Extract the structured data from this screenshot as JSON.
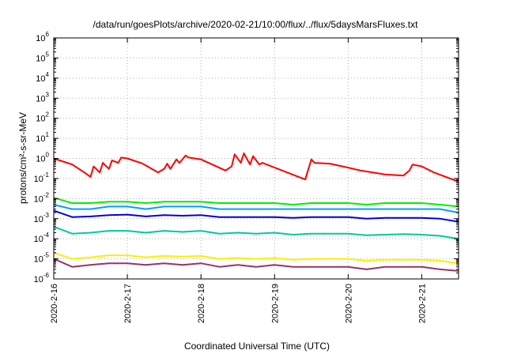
{
  "chart_data": {
    "type": "line",
    "title": "/data/run/goesPlots/archive/2020-02-21/10:00/flux/../flux/5daysMarsFluxes.txt",
    "xlabel": "Coordinated Universal Time (UTC)",
    "ylabel": "protons/cm²-s-sr-MeV",
    "yscale": "log",
    "xlim": [
      "2020-02-16T00:00",
      "2020-02-21T12:00"
    ],
    "ylim": [
      1e-06,
      1000000.0
    ],
    "grid": true,
    "x_ticks": [
      "2020-2-16",
      "2020-2-17",
      "2020-2-18",
      "2020-2-19",
      "2020-2-20",
      "2020-2-21"
    ],
    "y_tick_exponents": [
      -6,
      -5,
      -4,
      -3,
      -2,
      -1,
      0,
      1,
      2,
      3,
      4,
      5,
      6
    ],
    "series": [
      {
        "color": "#ff0000",
        "x": [
          "2020-02-16T00:00",
          "2020-02-16T06:00",
          "2020-02-16T10:00",
          "2020-02-16T12:00",
          "2020-02-16T13:00",
          "2020-02-16T15:00",
          "2020-02-16T16:00",
          "2020-02-16T18:00",
          "2020-02-16T19:00",
          "2020-02-16T21:00",
          "2020-02-16T22:00",
          "2020-02-17T00:00",
          "2020-02-17T05:00",
          "2020-02-17T10:00",
          "2020-02-17T12:00",
          "2020-02-17T13:00",
          "2020-02-17T14:00",
          "2020-02-17T16:00",
          "2020-02-17T17:00",
          "2020-02-17T19:00",
          "2020-02-17T20:00",
          "2020-02-18T00:00",
          "2020-02-18T08:00",
          "2020-02-18T10:00",
          "2020-02-18T11:00",
          "2020-02-18T13:00",
          "2020-02-18T14:00",
          "2020-02-18T16:00",
          "2020-02-18T17:00",
          "2020-02-18T19:00",
          "2020-02-18T20:00",
          "2020-02-19T00:00",
          "2020-02-19T10:00",
          "2020-02-19T12:00",
          "2020-02-19T13:00",
          "2020-02-19T18:00",
          "2020-02-20T00:00",
          "2020-02-20T04:00",
          "2020-02-20T12:00",
          "2020-02-20T18:00",
          "2020-02-20T20:00",
          "2020-02-20T21:00",
          "2020-02-21T00:00",
          "2020-02-21T04:00",
          "2020-02-21T12:00"
        ],
        "y": [
          1.0,
          0.5,
          0.2,
          0.12,
          0.4,
          0.2,
          0.6,
          0.3,
          0.8,
          0.6,
          1.1,
          1.0,
          0.55,
          0.2,
          0.3,
          0.55,
          0.3,
          0.9,
          0.6,
          1.4,
          1.1,
          0.9,
          0.25,
          0.4,
          1.6,
          0.6,
          1.8,
          0.5,
          1.3,
          0.5,
          0.6,
          0.35,
          0.09,
          0.9,
          0.6,
          0.55,
          0.35,
          0.25,
          0.16,
          0.14,
          0.25,
          0.5,
          0.4,
          0.2,
          0.07
        ]
      },
      {
        "color": "#00ee00",
        "x": [
          "2020-02-16T00:00",
          "2020-02-16T06:00",
          "2020-02-16T12:00",
          "2020-02-16T18:00",
          "2020-02-17T00:00",
          "2020-02-17T06:00",
          "2020-02-17T12:00",
          "2020-02-17T18:00",
          "2020-02-18T00:00",
          "2020-02-18T06:00",
          "2020-02-18T12:00",
          "2020-02-18T18:00",
          "2020-02-19T00:00",
          "2020-02-19T06:00",
          "2020-02-19T12:00",
          "2020-02-19T18:00",
          "2020-02-20T00:00",
          "2020-02-20T06:00",
          "2020-02-20T12:00",
          "2020-02-20T18:00",
          "2020-02-21T00:00",
          "2020-02-21T06:00",
          "2020-02-21T12:00"
        ],
        "y": [
          0.011,
          0.006,
          0.006,
          0.007,
          0.007,
          0.006,
          0.007,
          0.007,
          0.007,
          0.006,
          0.006,
          0.006,
          0.006,
          0.005,
          0.006,
          0.006,
          0.006,
          0.005,
          0.006,
          0.006,
          0.006,
          0.005,
          0.004
        ]
      },
      {
        "color": "#00a0ff",
        "x": [
          "2020-02-16T00:00",
          "2020-02-16T06:00",
          "2020-02-16T12:00",
          "2020-02-16T18:00",
          "2020-02-17T00:00",
          "2020-02-17T06:00",
          "2020-02-17T12:00",
          "2020-02-17T18:00",
          "2020-02-18T00:00",
          "2020-02-18T06:00",
          "2020-02-18T12:00",
          "2020-02-18T18:00",
          "2020-02-19T00:00",
          "2020-02-19T06:00",
          "2020-02-19T12:00",
          "2020-02-19T18:00",
          "2020-02-20T00:00",
          "2020-02-20T06:00",
          "2020-02-20T12:00",
          "2020-02-20T18:00",
          "2020-02-21T00:00",
          "2020-02-21T06:00",
          "2020-02-21T12:00"
        ],
        "y": [
          0.005,
          0.003,
          0.003,
          0.004,
          0.004,
          0.003,
          0.004,
          0.004,
          0.004,
          0.003,
          0.003,
          0.003,
          0.003,
          0.003,
          0.003,
          0.003,
          0.003,
          0.003,
          0.003,
          0.003,
          0.003,
          0.003,
          0.002
        ]
      },
      {
        "color": "#0000dd",
        "x": [
          "2020-02-16T00:00",
          "2020-02-16T06:00",
          "2020-02-16T12:00",
          "2020-02-16T18:00",
          "2020-02-17T00:00",
          "2020-02-17T06:00",
          "2020-02-17T12:00",
          "2020-02-17T18:00",
          "2020-02-18T00:00",
          "2020-02-18T06:00",
          "2020-02-18T12:00",
          "2020-02-18T18:00",
          "2020-02-19T00:00",
          "2020-02-19T06:00",
          "2020-02-19T12:00",
          "2020-02-19T18:00",
          "2020-02-20T00:00",
          "2020-02-20T06:00",
          "2020-02-20T12:00",
          "2020-02-20T18:00",
          "2020-02-21T00:00",
          "2020-02-21T06:00",
          "2020-02-21T12:00"
        ],
        "y": [
          0.0025,
          0.0012,
          0.0013,
          0.0015,
          0.0016,
          0.0013,
          0.0015,
          0.0014,
          0.0015,
          0.0012,
          0.0012,
          0.0012,
          0.0012,
          0.0011,
          0.0012,
          0.0012,
          0.0012,
          0.001,
          0.0011,
          0.0011,
          0.0011,
          0.001,
          0.0007
        ]
      },
      {
        "color": "#00c8a0",
        "x": [
          "2020-02-16T00:00",
          "2020-02-16T06:00",
          "2020-02-16T12:00",
          "2020-02-16T18:00",
          "2020-02-17T00:00",
          "2020-02-17T06:00",
          "2020-02-17T12:00",
          "2020-02-17T18:00",
          "2020-02-18T00:00",
          "2020-02-18T06:00",
          "2020-02-18T12:00",
          "2020-02-18T18:00",
          "2020-02-19T00:00",
          "2020-02-19T06:00",
          "2020-02-19T12:00",
          "2020-02-19T18:00",
          "2020-02-20T00:00",
          "2020-02-20T06:00",
          "2020-02-20T12:00",
          "2020-02-20T18:00",
          "2020-02-21T00:00",
          "2020-02-21T06:00",
          "2020-02-21T12:00"
        ],
        "y": [
          0.0004,
          0.00018,
          0.0002,
          0.00025,
          0.00025,
          0.0002,
          0.00025,
          0.00022,
          0.00025,
          0.00018,
          0.0002,
          0.00018,
          0.0002,
          0.00016,
          0.00018,
          0.00018,
          0.00018,
          0.00015,
          0.00016,
          0.00017,
          0.00016,
          0.00014,
          0.0001
        ]
      },
      {
        "color": "#ffee00",
        "x": [
          "2020-02-16T00:00",
          "2020-02-16T06:00",
          "2020-02-16T12:00",
          "2020-02-16T18:00",
          "2020-02-17T00:00",
          "2020-02-17T06:00",
          "2020-02-17T12:00",
          "2020-02-17T18:00",
          "2020-02-18T00:00",
          "2020-02-18T06:00",
          "2020-02-18T12:00",
          "2020-02-18T18:00",
          "2020-02-19T00:00",
          "2020-02-19T06:00",
          "2020-02-19T12:00",
          "2020-02-19T18:00",
          "2020-02-20T00:00",
          "2020-02-20T06:00",
          "2020-02-20T12:00",
          "2020-02-20T18:00",
          "2020-02-21T00:00",
          "2020-02-21T06:00",
          "2020-02-21T12:00"
        ],
        "y": [
          2e-05,
          1e-05,
          1.2e-05,
          1.5e-05,
          1.5e-05,
          1.2e-05,
          1.4e-05,
          1.3e-05,
          1.4e-05,
          1e-05,
          1.1e-05,
          1e-05,
          1.1e-05,
          9e-06,
          1e-05,
          1e-05,
          1e-05,
          8e-06,
          9e-06,
          9e-06,
          9e-06,
          8e-06,
          6e-06
        ]
      },
      {
        "color": "#993366",
        "x": [
          "2020-02-16T00:00",
          "2020-02-16T06:00",
          "2020-02-16T12:00",
          "2020-02-16T18:00",
          "2020-02-17T00:00",
          "2020-02-17T06:00",
          "2020-02-17T12:00",
          "2020-02-17T18:00",
          "2020-02-18T00:00",
          "2020-02-18T06:00",
          "2020-02-18T12:00",
          "2020-02-18T18:00",
          "2020-02-19T00:00",
          "2020-02-19T06:00",
          "2020-02-19T12:00",
          "2020-02-19T18:00",
          "2020-02-20T00:00",
          "2020-02-20T06:00",
          "2020-02-20T12:00",
          "2020-02-20T18:00",
          "2020-02-21T00:00",
          "2020-02-21T06:00",
          "2020-02-21T12:00"
        ],
        "y": [
          1e-05,
          4e-06,
          5e-06,
          6e-06,
          6e-06,
          5e-06,
          6e-06,
          5e-06,
          6e-06,
          4e-06,
          5e-06,
          4e-06,
          5e-06,
          4e-06,
          4e-06,
          4e-06,
          4e-06,
          3e-06,
          4e-06,
          4e-06,
          4e-06,
          3e-06,
          2.5e-06
        ]
      }
    ]
  }
}
